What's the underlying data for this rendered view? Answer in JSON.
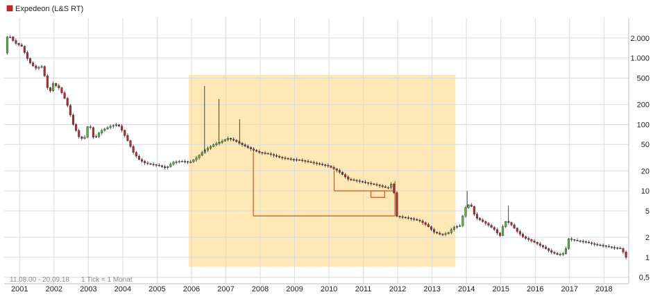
{
  "colors": {
    "up": "#56b848",
    "down": "#c0282c",
    "grid": "#dcdcdc",
    "highlight": "#fde8b6",
    "annotation": "#d0521f",
    "legend_marker": "#c0282c"
  },
  "chart_data": {
    "type": "candlestick",
    "title": "Expedeon (L&S RT)",
    "footer": {
      "range": "11.08.00 - 20.09.18",
      "interval": "1 Tick = 1 Monat"
    },
    "y_scale": "log",
    "ylim": [
      0.4,
      4000
    ],
    "xlim": [
      2000.55,
      2018.72
    ],
    "grid": true,
    "y_ticks": [
      {
        "value": 2000,
        "label": "2.000"
      },
      {
        "value": 1000,
        "label": "1.000"
      },
      {
        "value": 500,
        "label": "500"
      },
      {
        "value": 200,
        "label": "200"
      },
      {
        "value": 100,
        "label": "100"
      },
      {
        "value": 50,
        "label": "50"
      },
      {
        "value": 20,
        "label": "20"
      },
      {
        "value": 10,
        "label": "10"
      },
      {
        "value": 5,
        "label": "5"
      },
      {
        "value": 2,
        "label": "2"
      },
      {
        "value": 1,
        "label": "1"
      },
      {
        "value": 0.5,
        "label": "0,5"
      }
    ],
    "x_ticks": [
      "2001",
      "2002",
      "2003",
      "2004",
      "2005",
      "2006",
      "2007",
      "2008",
      "2009",
      "2010",
      "2011",
      "2012",
      "2013",
      "2014",
      "2015",
      "2016",
      "2017",
      "2018"
    ],
    "price_path": [
      [
        2000.6,
        1200
      ],
      [
        2000.7,
        2300
      ],
      [
        2000.9,
        1700
      ],
      [
        2001.1,
        1500
      ],
      [
        2001.3,
        900
      ],
      [
        2001.5,
        700
      ],
      [
        2001.7,
        750
      ],
      [
        2001.9,
        280
      ],
      [
        2002.0,
        420
      ],
      [
        2002.2,
        350
      ],
      [
        2002.4,
        220
      ],
      [
        2002.6,
        100
      ],
      [
        2002.8,
        60
      ],
      [
        2002.95,
        65
      ],
      [
        2003.05,
        110
      ],
      [
        2003.2,
        60
      ],
      [
        2003.4,
        80
      ],
      [
        2003.7,
        95
      ],
      [
        2003.9,
        100
      ],
      [
        2004.0,
        85
      ],
      [
        2004.2,
        55
      ],
      [
        2004.35,
        38
      ],
      [
        2004.5,
        30
      ],
      [
        2004.7,
        26
      ],
      [
        2004.9,
        25
      ],
      [
        2005.1,
        24
      ],
      [
        2005.3,
        22
      ],
      [
        2005.5,
        27
      ],
      [
        2005.75,
        28
      ],
      [
        2006.0,
        27
      ],
      [
        2006.2,
        32
      ],
      [
        2006.45,
        42
      ],
      [
        2006.7,
        50
      ],
      [
        2006.9,
        55
      ],
      [
        2007.1,
        62
      ],
      [
        2007.3,
        57
      ],
      [
        2007.5,
        50
      ],
      [
        2007.8,
        42
      ],
      [
        2008.0,
        38
      ],
      [
        2008.3,
        36
      ],
      [
        2008.6,
        32
      ],
      [
        2008.9,
        30
      ],
      [
        2009.2,
        29
      ],
      [
        2009.5,
        27
      ],
      [
        2009.8,
        25
      ],
      [
        2010.0,
        24
      ],
      [
        2010.3,
        20
      ],
      [
        2010.6,
        15
      ],
      [
        2010.9,
        14
      ],
      [
        2011.2,
        13
      ],
      [
        2011.5,
        12
      ],
      [
        2011.75,
        11
      ],
      [
        2011.92,
        14
      ],
      [
        2011.96,
        4.2
      ],
      [
        2012.2,
        4.0
      ],
      [
        2012.45,
        3.8
      ],
      [
        2012.7,
        3.5
      ],
      [
        2012.9,
        3.0
      ],
      [
        2013.1,
        2.4
      ],
      [
        2013.3,
        2.2
      ],
      [
        2013.5,
        2.3
      ],
      [
        2013.65,
        2.8
      ],
      [
        2013.85,
        3.0
      ],
      [
        2014.0,
        5.5
      ],
      [
        2014.15,
        6.5
      ],
      [
        2014.3,
        4.0
      ],
      [
        2014.5,
        3.5
      ],
      [
        2014.7,
        3.0
      ],
      [
        2014.9,
        2.5
      ],
      [
        2015.0,
        2.0
      ],
      [
        2015.15,
        3.5
      ],
      [
        2015.3,
        3.3
      ],
      [
        2015.5,
        2.5
      ],
      [
        2015.7,
        2.0
      ],
      [
        2015.9,
        1.8
      ],
      [
        2016.1,
        1.6
      ],
      [
        2016.3,
        1.4
      ],
      [
        2016.5,
        1.2
      ],
      [
        2016.7,
        1.1
      ],
      [
        2016.9,
        1.15
      ],
      [
        2017.0,
        1.9
      ],
      [
        2017.2,
        1.8
      ],
      [
        2017.5,
        1.7
      ],
      [
        2017.8,
        1.55
      ],
      [
        2018.0,
        1.5
      ],
      [
        2018.3,
        1.4
      ],
      [
        2018.55,
        1.35
      ],
      [
        2018.68,
        1.0
      ]
    ],
    "spikes": [
      {
        "x": 2006.38,
        "high": 380
      },
      {
        "x": 2006.8,
        "high": 240
      },
      {
        "x": 2007.4,
        "high": 120
      },
      {
        "x": 2014.02,
        "high": 10
      },
      {
        "x": 2015.22,
        "high": 6
      }
    ],
    "highlight_region": {
      "x0": 2005.92,
      "x1": 2013.68,
      "y0": 0.72,
      "y1": 560
    },
    "annotations": [
      {
        "type": "hline",
        "x0": 2007.8,
        "x1": 2011.92,
        "y": 4.2
      },
      {
        "type": "vline",
        "x": 2007.8,
        "y0": 4.2,
        "y1": 38
      },
      {
        "type": "hline",
        "x0": 2010.15,
        "x1": 2011.92,
        "y": 10
      },
      {
        "type": "vline",
        "x": 2010.15,
        "y0": 10,
        "y1": 20
      },
      {
        "type": "rect",
        "x0": 2011.22,
        "x1": 2011.62,
        "y0": 8,
        "y1": 10
      },
      {
        "type": "vline",
        "x": 2011.92,
        "y0": 4.2,
        "y1": 14
      }
    ]
  }
}
